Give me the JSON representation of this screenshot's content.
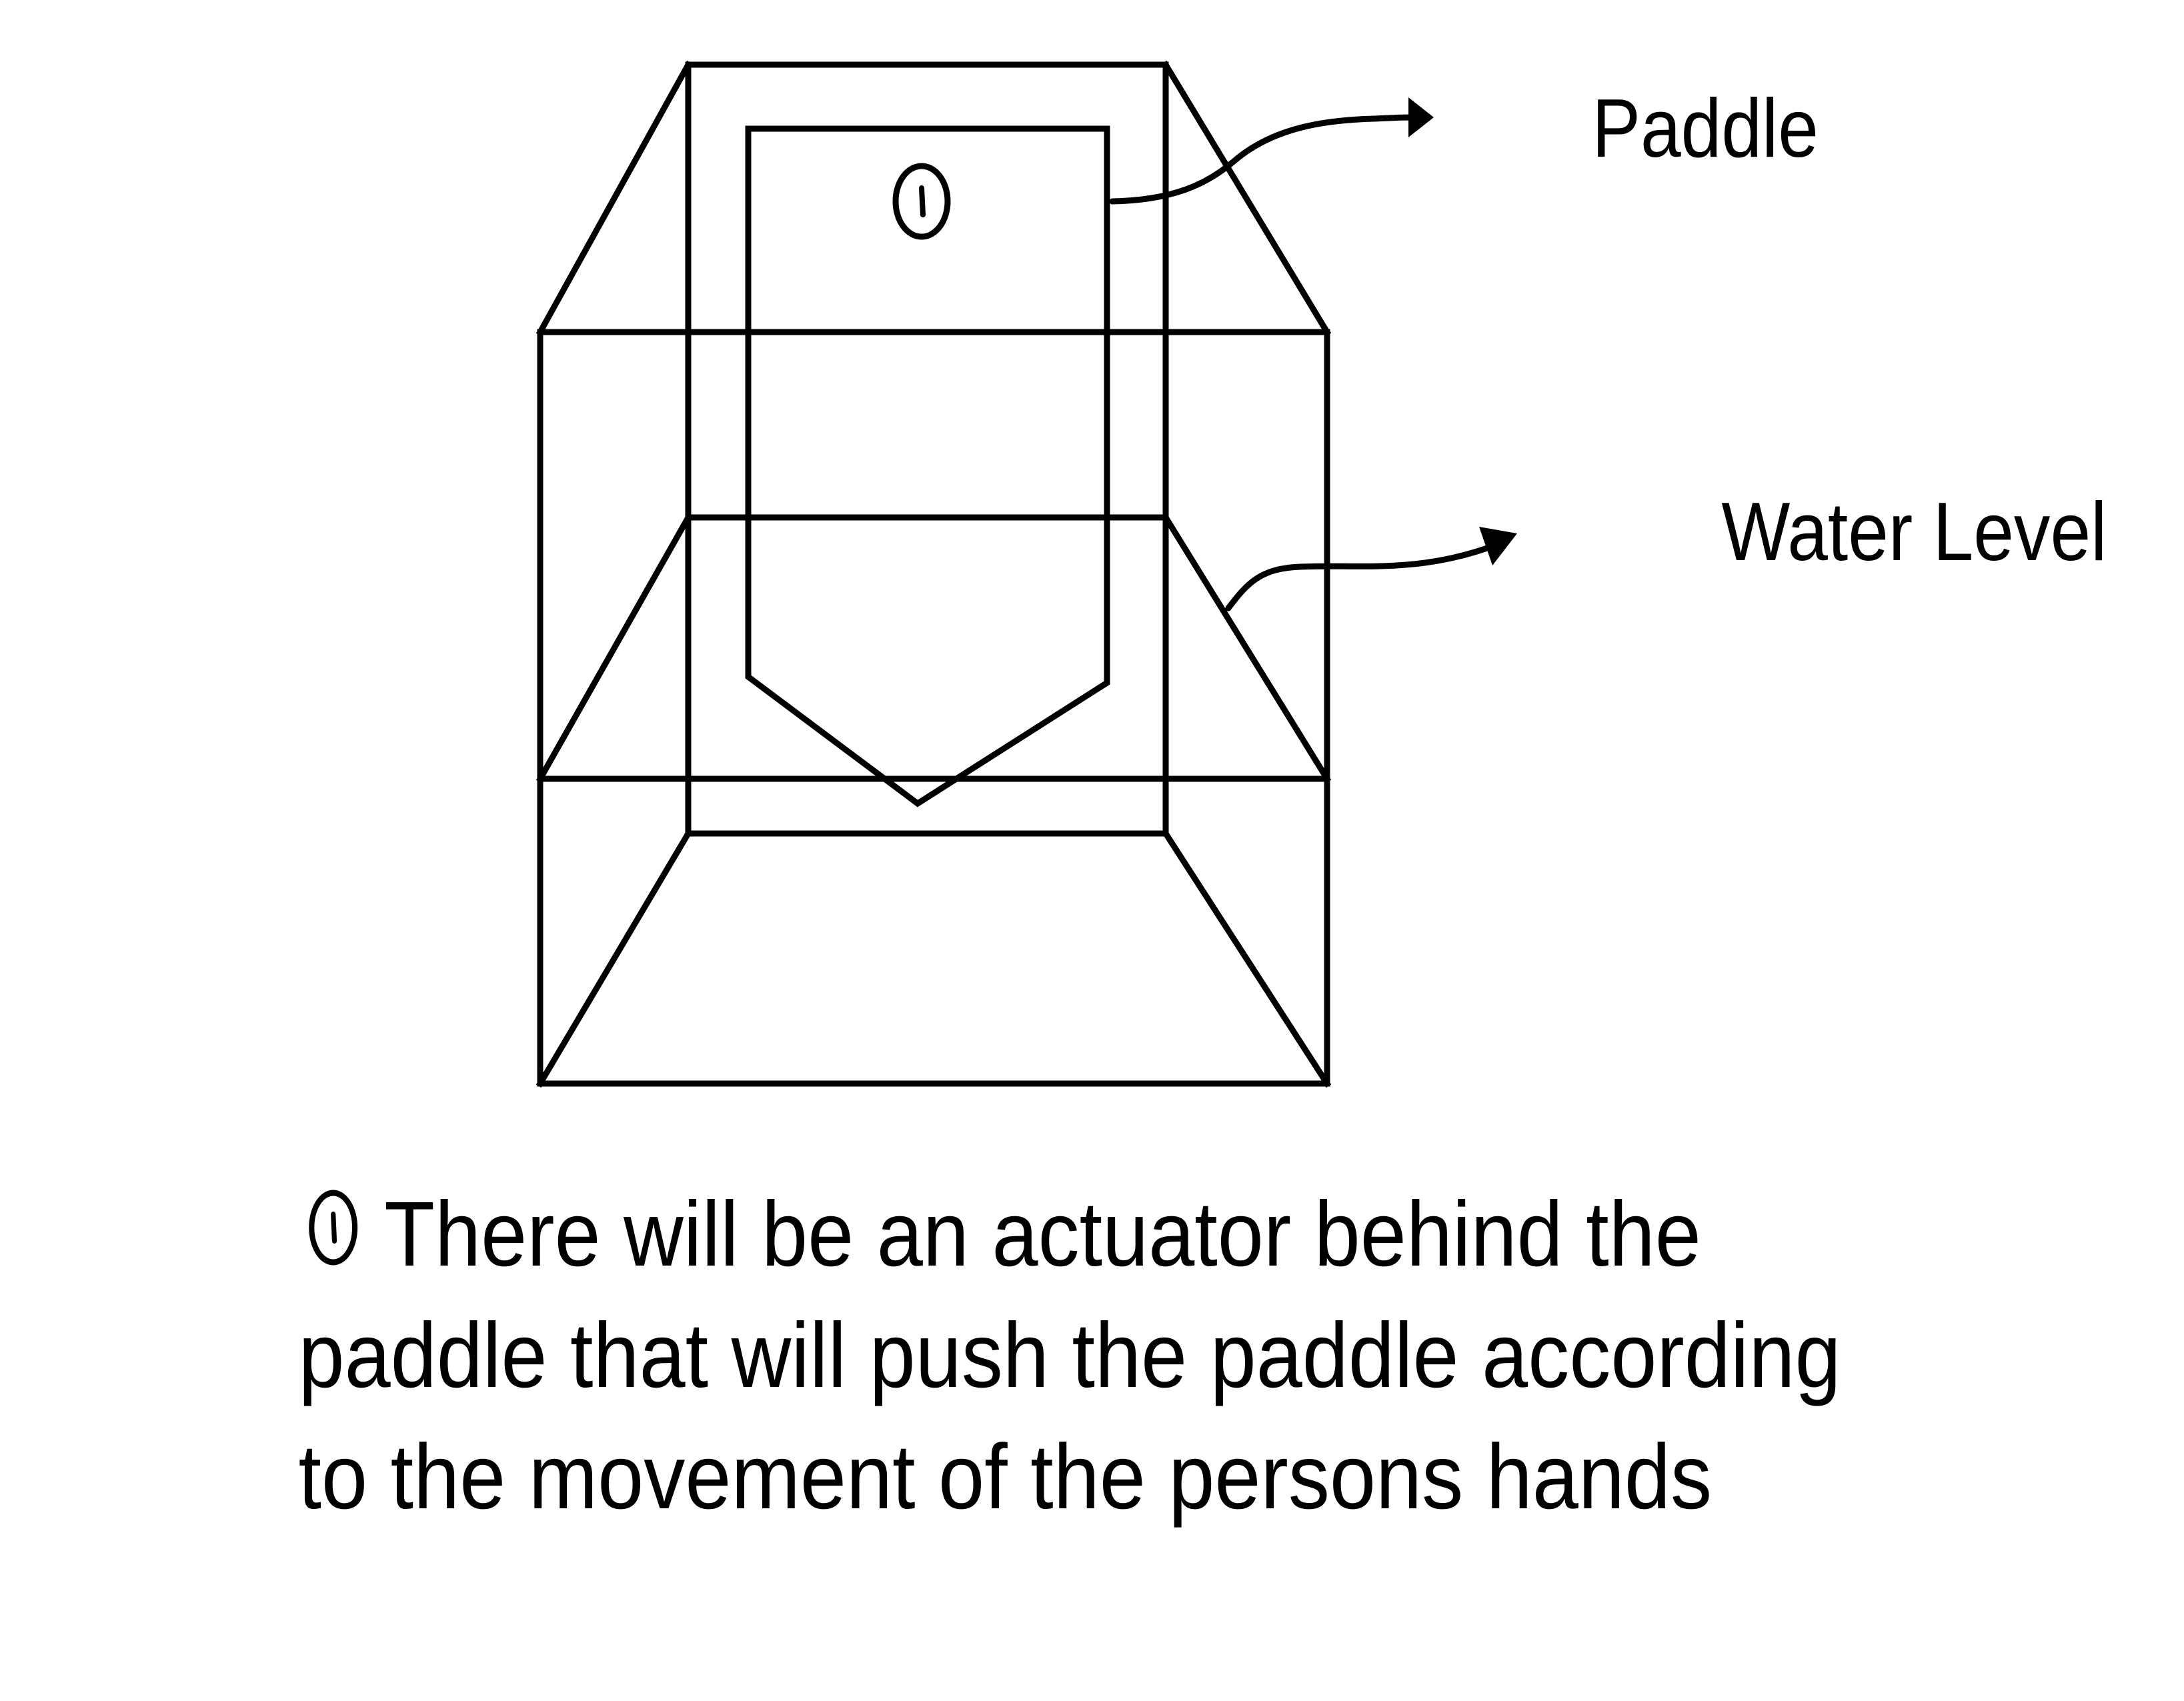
{
  "labels": {
    "paddle": "Paddle",
    "water_level": "Water Level"
  },
  "note": {
    "line1": "There will be an actuator behind the",
    "line2": "paddle that will push the paddle according",
    "line3": "to the movement of the persons hands"
  },
  "colors": {
    "stroke": "#000000",
    "background": "#ffffff"
  },
  "icons": {
    "marker": "circled-one-marker"
  }
}
